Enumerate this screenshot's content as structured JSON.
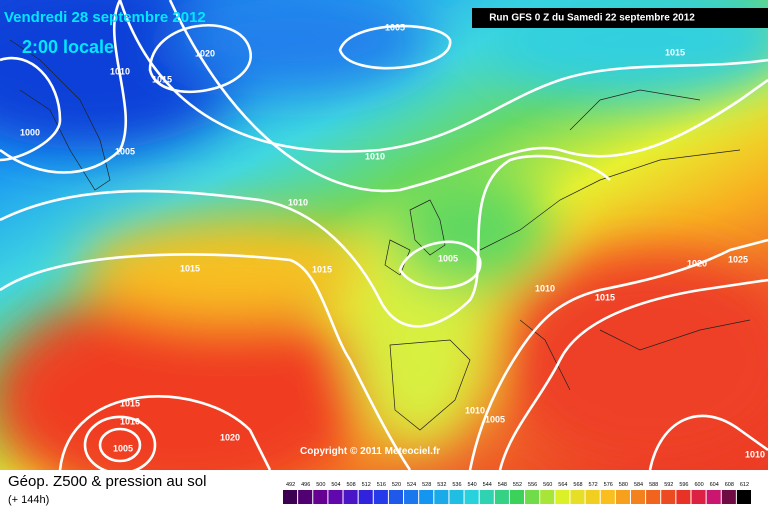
{
  "header": {
    "date": "Vendredi 28 septembre 2012",
    "time": "2:00 locale",
    "run": "Run GFS 0 Z du Samedi 22 septembre 2012"
  },
  "copyright": "Copyright © 2011 Meteociel.fr",
  "footer": {
    "title": "Géop. Z500 & pression au sol",
    "lead": "(+ 144h)"
  },
  "isobar_labels": [
    "1005",
    "1015",
    "1010",
    "1015",
    "1020",
    "1000",
    "1005",
    "1010",
    "1010",
    "1015",
    "1015",
    "1005",
    "1010",
    "1015",
    "1020",
    "1025",
    "1015",
    "1010",
    "1005",
    "1020",
    "1010",
    "1005",
    "1010"
  ],
  "legend": {
    "scale": [
      492,
      496,
      500,
      504,
      508,
      512,
      516,
      520,
      524,
      528,
      532,
      536,
      540,
      544,
      548,
      552,
      556,
      560,
      564,
      568,
      572,
      576,
      580,
      584,
      588,
      592,
      596,
      600,
      604,
      608,
      612
    ]
  }
}
